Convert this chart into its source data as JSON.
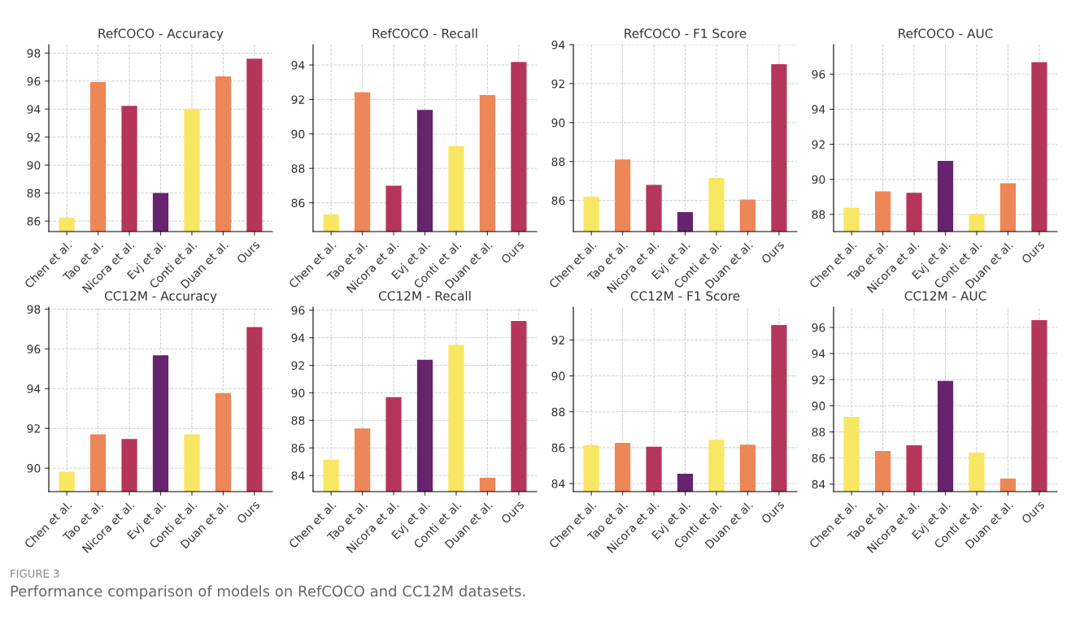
{
  "chart_data": [
    {
      "type": "bar",
      "title": "RefCOCO - Accuracy",
      "categories": [
        "Chen et al.",
        "Tao et al.",
        "Nicora et al.",
        "Evj et al.",
        "Conti et al.",
        "Duan et al.",
        "Ours"
      ],
      "values": [
        86.25,
        95.93,
        94.23,
        88.0,
        94.0,
        96.33,
        97.6
      ],
      "colors": [
        "#f7e763",
        "#ed8757",
        "#b6365b",
        "#66246e",
        "#f7e763",
        "#ed8757",
        "#b6365b"
      ],
      "ylim": [
        85.25,
        98.6
      ],
      "yticks": [
        86,
        88,
        90,
        92,
        94,
        96,
        98
      ],
      "grid": true,
      "annotations": [
        "FIGURE 3",
        "Performance comparison of models on RefCOCO and CC12M datasets."
      ]
    },
    {
      "type": "bar",
      "title": "RefCOCO - Recall",
      "categories": [
        "Chen et al.",
        "Tao et al.",
        "Nicora et al.",
        "Evj et al.",
        "Conti et al.",
        "Duan et al.",
        "Ours"
      ],
      "values": [
        85.33,
        92.42,
        87.0,
        91.4,
        89.3,
        92.25,
        94.18
      ],
      "colors": [
        "#f7e763",
        "#ed8757",
        "#b6365b",
        "#66246e",
        "#f7e763",
        "#ed8757",
        "#b6365b"
      ],
      "ylim": [
        84.33,
        95.18
      ],
      "yticks": [
        86,
        88,
        90,
        92,
        94
      ],
      "grid": true
    },
    {
      "type": "bar",
      "title": "RefCOCO - F1 Score",
      "categories": [
        "Chen et al.",
        "Tao et al.",
        "Nicora et al.",
        "Evj et al.",
        "Conti et al.",
        "Duan et al.",
        "Ours"
      ],
      "values": [
        86.2,
        88.1,
        86.8,
        85.4,
        87.15,
        86.05,
        93.0
      ],
      "colors": [
        "#f7e763",
        "#ed8757",
        "#b6365b",
        "#66246e",
        "#f7e763",
        "#ed8757",
        "#b6365b"
      ],
      "ylim": [
        84.4,
        94.0
      ],
      "yticks": [
        86,
        88,
        90,
        92,
        94
      ],
      "grid": true
    },
    {
      "type": "bar",
      "title": "RefCOCO - AUC",
      "categories": [
        "Chen et al.",
        "Tao et al.",
        "Nicora et al.",
        "Evj et al.",
        "Conti et al.",
        "Duan et al.",
        "Ours"
      ],
      "values": [
        88.38,
        89.32,
        89.23,
        91.05,
        88.02,
        89.78,
        96.68
      ],
      "colors": [
        "#f7e763",
        "#ed8757",
        "#b6365b",
        "#66246e",
        "#f7e763",
        "#ed8757",
        "#b6365b"
      ],
      "ylim": [
        87.02,
        97.68
      ],
      "yticks": [
        88,
        90,
        92,
        94,
        96
      ],
      "grid": true
    },
    {
      "type": "bar",
      "title": "CC12M - Accuracy",
      "categories": [
        "Chen et al.",
        "Tao et al.",
        "Nicora et al.",
        "Evj et al.",
        "Conti et al.",
        "Duan et al.",
        "Ours"
      ],
      "values": [
        89.82,
        91.7,
        91.47,
        95.68,
        91.7,
        93.78,
        97.1
      ],
      "colors": [
        "#f7e763",
        "#ed8757",
        "#b6365b",
        "#66246e",
        "#f7e763",
        "#ed8757",
        "#b6365b"
      ],
      "ylim": [
        88.82,
        98.1
      ],
      "yticks": [
        90,
        92,
        94,
        96,
        98
      ],
      "grid": true
    },
    {
      "type": "bar",
      "title": "CC12M - Recall",
      "categories": [
        "Chen et al.",
        "Tao et al.",
        "Nicora et al.",
        "Evj et al.",
        "Conti et al.",
        "Duan et al.",
        "Ours"
      ],
      "values": [
        85.15,
        87.42,
        89.68,
        92.4,
        93.47,
        83.83,
        95.22
      ],
      "colors": [
        "#f7e763",
        "#ed8757",
        "#b6365b",
        "#66246e",
        "#f7e763",
        "#ed8757",
        "#b6365b"
      ],
      "ylim": [
        82.83,
        96.22
      ],
      "yticks": [
        84,
        86,
        88,
        90,
        92,
        94,
        96
      ],
      "grid": true
    },
    {
      "type": "bar",
      "title": "CC12M - F1 Score",
      "categories": [
        "Chen et al.",
        "Tao et al.",
        "Nicora et al.",
        "Evj et al.",
        "Conti et al.",
        "Duan et al.",
        "Ours"
      ],
      "values": [
        86.14,
        86.27,
        86.05,
        84.55,
        86.44,
        86.17,
        92.83
      ],
      "colors": [
        "#f7e763",
        "#ed8757",
        "#b6365b",
        "#66246e",
        "#f7e763",
        "#ed8757",
        "#b6365b"
      ],
      "ylim": [
        83.55,
        93.83
      ],
      "yticks": [
        84,
        86,
        88,
        90,
        92
      ],
      "grid": true
    },
    {
      "type": "bar",
      "title": "CC12M - AUC",
      "categories": [
        "Chen et al.",
        "Tao et al.",
        "Nicora et al.",
        "Evj et al.",
        "Conti et al.",
        "Duan et al.",
        "Ours"
      ],
      "values": [
        89.16,
        86.54,
        86.98,
        91.9,
        86.42,
        84.43,
        96.55
      ],
      "colors": [
        "#f7e763",
        "#ed8757",
        "#b6365b",
        "#66246e",
        "#f7e763",
        "#ed8757",
        "#b6365b"
      ],
      "ylim": [
        83.43,
        97.55
      ],
      "yticks": [
        84,
        86,
        88,
        90,
        92,
        94,
        96
      ],
      "grid": true
    }
  ]
}
